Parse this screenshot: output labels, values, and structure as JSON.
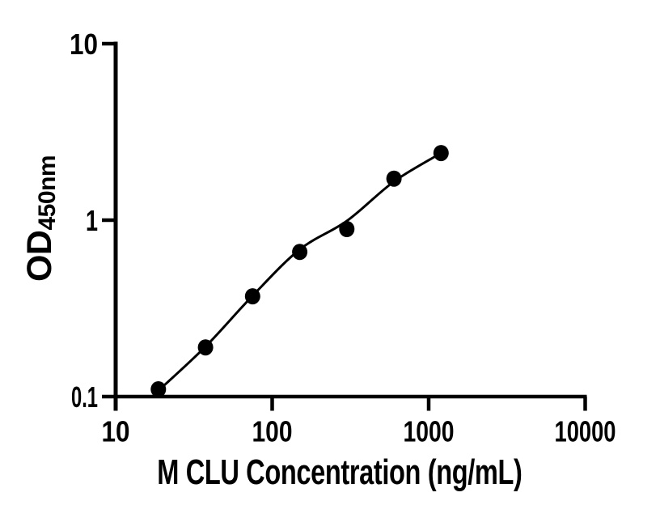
{
  "chart_data": {
    "type": "scatter",
    "title": "",
    "xlabel": "M CLU Concentration (ng/mL)",
    "ylabel": "OD",
    "ylabel_subscript": "450nm",
    "x_scale": "log10",
    "y_scale": "log10",
    "xlim": [
      10,
      10000
    ],
    "ylim": [
      0.1,
      10
    ],
    "x_tick_labels": [
      "10",
      "100",
      "1000",
      "10000"
    ],
    "y_tick_labels": [
      "10",
      "1",
      "0.1"
    ],
    "grid": false,
    "legend": false,
    "ink_color": "#000000",
    "background_color": "#ffffff",
    "series": [
      {
        "name": "fitted-curve",
        "type": "line",
        "color": "#000000",
        "x": [
          18.75,
          37.5,
          75,
          150,
          300,
          600,
          1200
        ],
        "y": [
          0.108,
          0.192,
          0.373,
          0.682,
          0.99,
          1.655,
          2.4
        ]
      },
      {
        "name": "standard-points",
        "type": "scatter",
        "marker": "filled-circle",
        "color": "#000000",
        "x": [
          18.75,
          37.5,
          75,
          150,
          300,
          600,
          1200
        ],
        "y": [
          0.11,
          0.19,
          0.37,
          0.66,
          0.89,
          1.72,
          2.4
        ]
      }
    ]
  }
}
